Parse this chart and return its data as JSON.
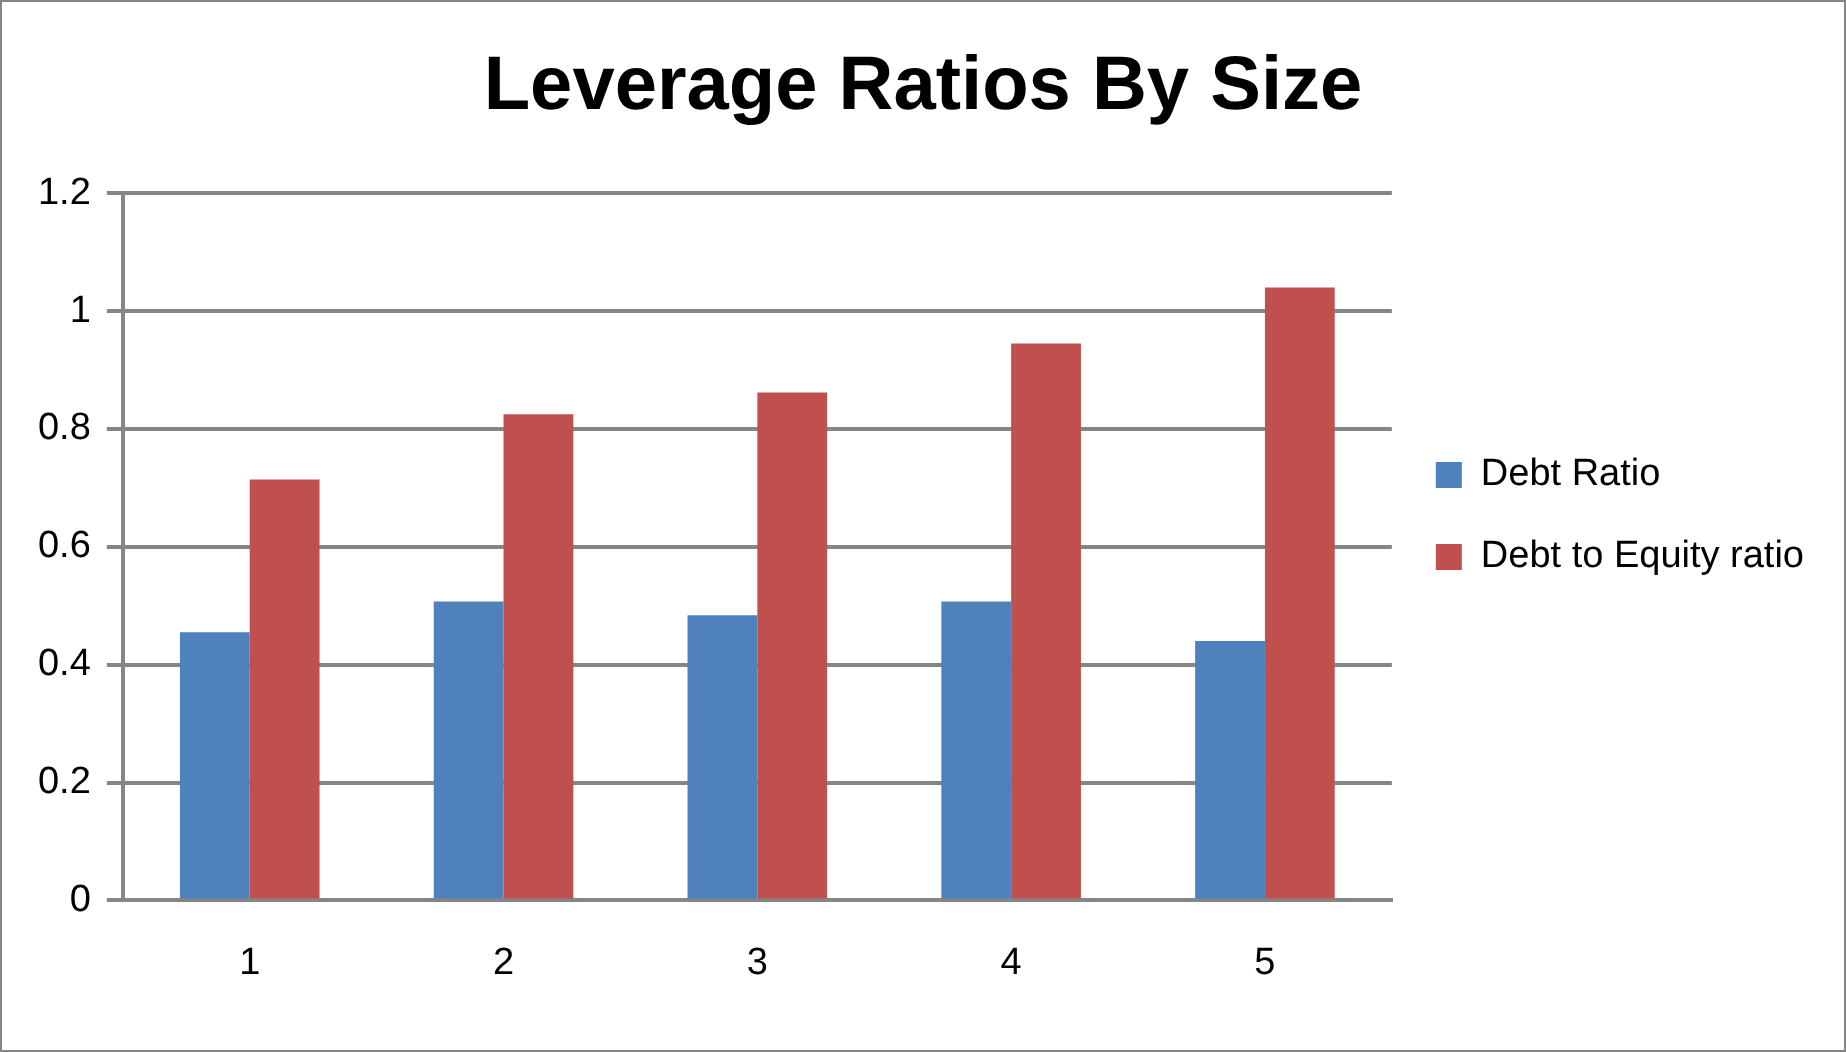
{
  "chart_data": {
    "type": "bar",
    "title": "Leverage Ratios By Size",
    "categories": [
      "1",
      "2",
      "3",
      "4",
      "5"
    ],
    "series": [
      {
        "name": "Debt Ratio",
        "color": "#4f81bd",
        "values": [
          0.455,
          0.507,
          0.484,
          0.507,
          0.44
        ]
      },
      {
        "name": "Debt to Equity ratio",
        "color": "#c0504d",
        "values": [
          0.714,
          0.825,
          0.862,
          0.945,
          1.04
        ]
      }
    ],
    "ylim": [
      0,
      1.2
    ],
    "yticks": [
      0,
      0.2,
      0.4,
      0.6,
      0.8,
      1,
      1.2
    ],
    "grid": "y",
    "legend": "right"
  }
}
